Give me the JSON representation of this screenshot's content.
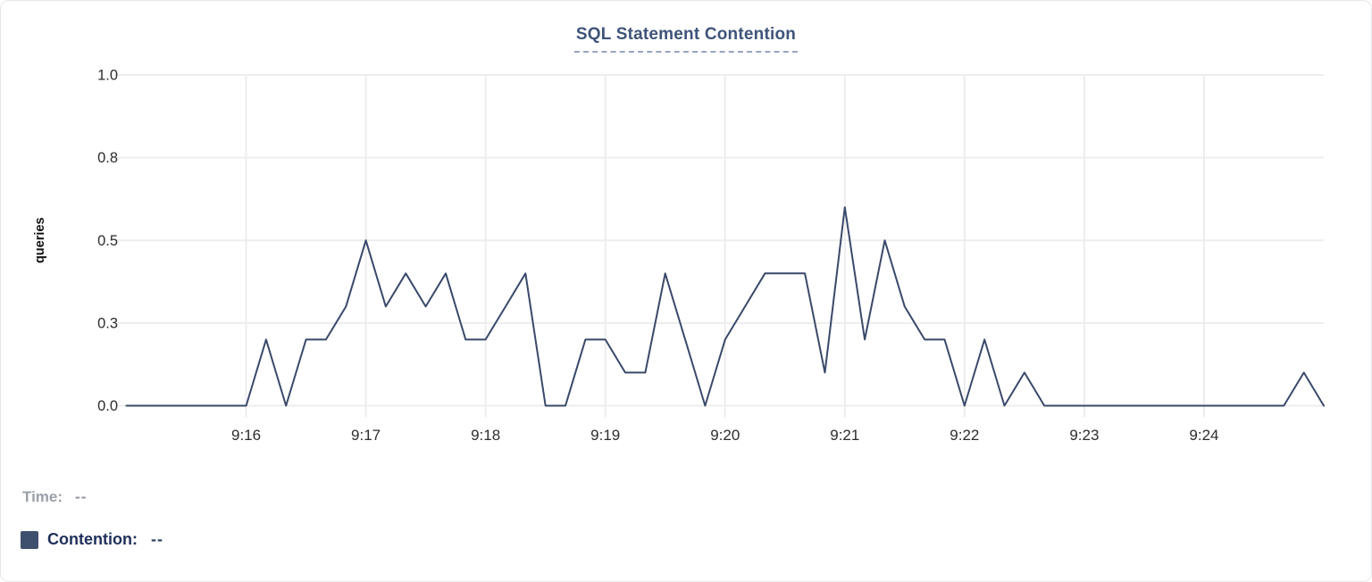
{
  "title": {
    "text": "SQL Statement Contention"
  },
  "footer": {
    "time_label": "Time:",
    "time_value": "--",
    "legend_label": "Contention:",
    "legend_value": "--",
    "legend_color": "#3f4f6e"
  },
  "colors": {
    "line": "#39496a",
    "grid": "#ededee",
    "tick_label": "#2d2d2d",
    "axis_title": "#111111",
    "title_accent": "#3e5479"
  },
  "chart_data": {
    "type": "line",
    "title": "SQL Statement Contention",
    "xlabel": "",
    "ylabel": "queries",
    "ylim": [
      0,
      1.0
    ],
    "grid": true,
    "legend_position": "bottom-left",
    "interval_seconds": 10,
    "x_domain": [
      "9:15:00",
      "9:25:00"
    ],
    "yticks": [
      {
        "label": "0.0",
        "value": 0
      },
      {
        "label": "0.3",
        "value": 0.25
      },
      {
        "label": "0.5",
        "value": 0.5
      },
      {
        "label": "0.8",
        "value": 0.75
      },
      {
        "label": "1.0",
        "value": 1.0
      }
    ],
    "xticks": [
      {
        "label": "9:16",
        "pos": 0.1
      },
      {
        "label": "9:17",
        "pos": 0.2
      },
      {
        "label": "9:18",
        "pos": 0.3
      },
      {
        "label": "9:19",
        "pos": 0.4
      },
      {
        "label": "9:20",
        "pos": 0.5
      },
      {
        "label": "9:21",
        "pos": 0.6
      },
      {
        "label": "9:22",
        "pos": 0.7
      },
      {
        "label": "9:23",
        "pos": 0.8
      },
      {
        "label": "9:24",
        "pos": 0.9
      }
    ],
    "series": [
      {
        "name": "Contention",
        "color": "#39496a",
        "times": [
          "9:15:00",
          "9:15:10",
          "9:15:20",
          "9:15:30",
          "9:15:40",
          "9:15:50",
          "9:16:00",
          "9:16:10",
          "9:16:20",
          "9:16:30",
          "9:16:40",
          "9:16:50",
          "9:17:00",
          "9:17:10",
          "9:17:20",
          "9:17:30",
          "9:17:40",
          "9:17:50",
          "9:18:00",
          "9:18:10",
          "9:18:20",
          "9:18:30",
          "9:18:40",
          "9:18:50",
          "9:19:00",
          "9:19:10",
          "9:19:20",
          "9:19:30",
          "9:19:40",
          "9:19:50",
          "9:20:00",
          "9:20:10",
          "9:20:20",
          "9:20:30",
          "9:20:40",
          "9:20:50",
          "9:21:00",
          "9:21:10",
          "9:21:20",
          "9:21:30",
          "9:21:40",
          "9:21:50",
          "9:22:00",
          "9:22:10",
          "9:22:20",
          "9:22:30",
          "9:22:40",
          "9:22:50",
          "9:23:00",
          "9:23:10",
          "9:23:20",
          "9:23:30",
          "9:23:40",
          "9:23:50",
          "9:24:00",
          "9:24:10",
          "9:24:20",
          "9:24:30",
          "9:24:40",
          "9:24:50",
          "9:25:00"
        ],
        "values": [
          0,
          0,
          0,
          0,
          0,
          0,
          0,
          0.2,
          0,
          0.2,
          0.2,
          0.3,
          0.5,
          0.3,
          0.4,
          0.3,
          0.4,
          0.2,
          0.2,
          0.3,
          0.4,
          0,
          0,
          0.2,
          0.2,
          0.1,
          0.1,
          0.4,
          0.2,
          0,
          0.2,
          0.3,
          0.4,
          0.4,
          0.4,
          0.1,
          0.6,
          0.2,
          0.5,
          0.3,
          0.2,
          0.2,
          0,
          0.2,
          0,
          0.1,
          0,
          0,
          0,
          0,
          0,
          0,
          0,
          0,
          0,
          0,
          0,
          0,
          0,
          0.1,
          0
        ]
      }
    ]
  }
}
